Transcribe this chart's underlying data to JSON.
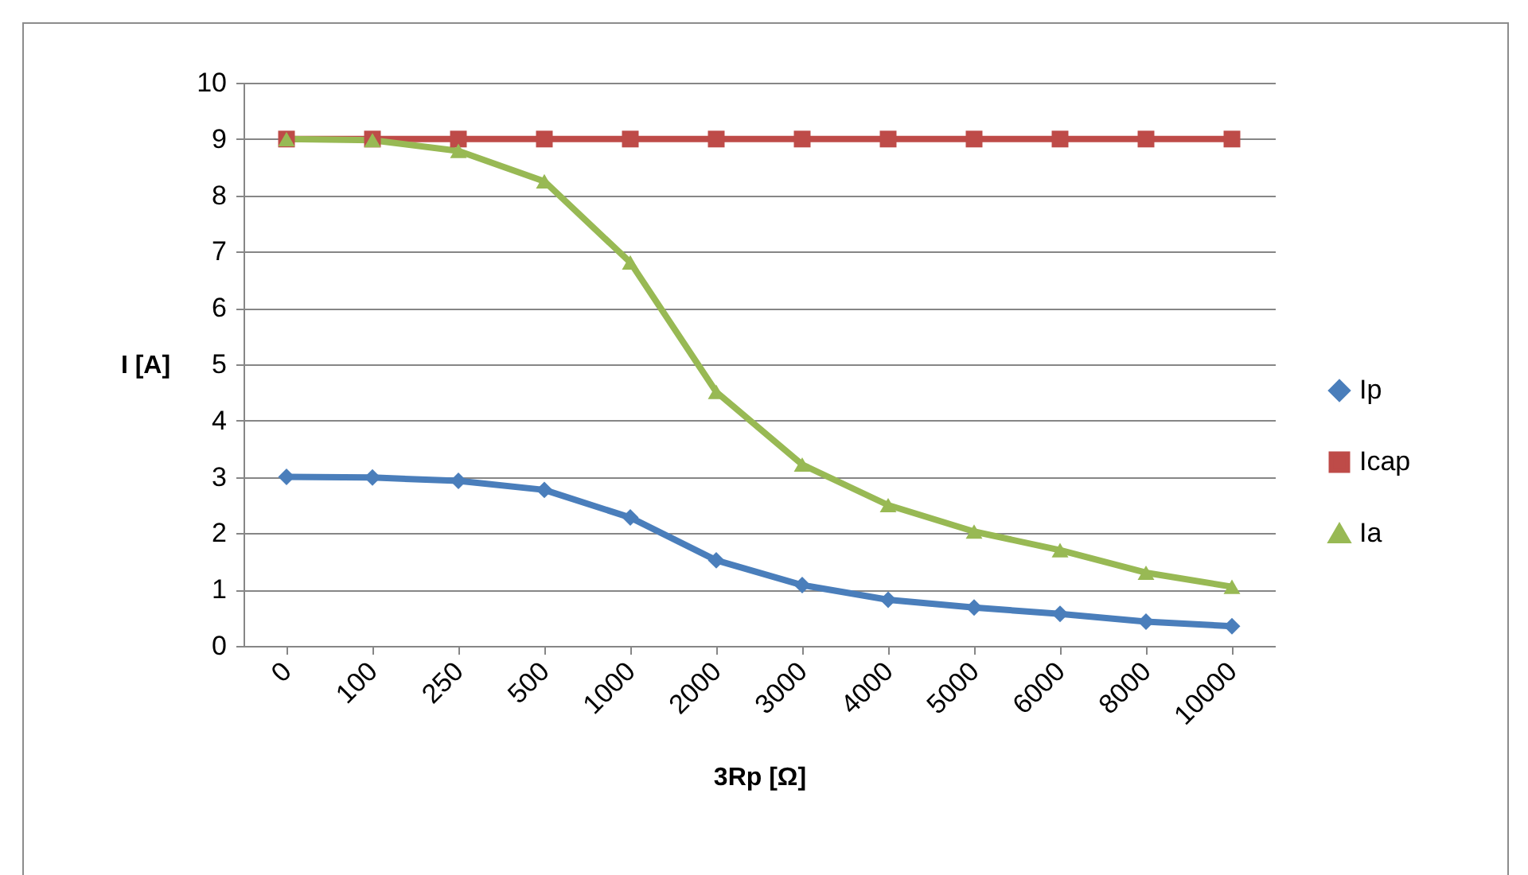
{
  "chart_data": {
    "type": "line",
    "xlabel": "3Rp [Ω]",
    "ylabel": "I [A]",
    "categories": [
      "0",
      "100",
      "250",
      "500",
      "1000",
      "2000",
      "3000",
      "4000",
      "5000",
      "6000",
      "8000",
      "10000"
    ],
    "series": [
      {
        "name": "Ip",
        "color": "#4a7ebb",
        "marker": "diamond",
        "values": [
          3.0,
          2.99,
          2.93,
          2.77,
          2.28,
          1.52,
          1.08,
          0.82,
          0.68,
          0.57,
          0.43,
          0.35
        ]
      },
      {
        "name": "Icap",
        "color": "#be4b48",
        "marker": "square",
        "values": [
          9,
          9,
          9,
          9,
          9,
          9,
          9,
          9,
          9,
          9,
          9,
          9
        ]
      },
      {
        "name": "Ia",
        "color": "#98b954",
        "marker": "triangle",
        "values": [
          9.0,
          8.98,
          8.79,
          8.25,
          6.81,
          4.51,
          3.22,
          2.5,
          2.03,
          1.7,
          1.3,
          1.05
        ]
      }
    ],
    "ylim": [
      0,
      10
    ],
    "yticks": [
      0,
      1,
      2,
      3,
      4,
      5,
      6,
      7,
      8,
      9,
      10
    ],
    "grid": "y",
    "legend": "right",
    "line_style": "solid"
  }
}
